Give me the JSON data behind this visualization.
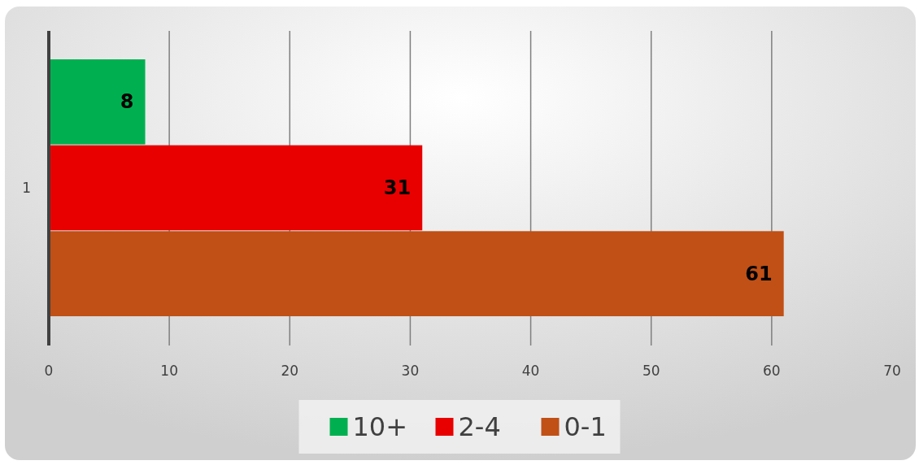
{
  "chart_data": {
    "type": "bar",
    "orientation": "horizontal",
    "categories": [
      null,
      "1",
      null
    ],
    "series": [
      {
        "name": "10+",
        "color": "#00b050",
        "values": [
          8,
          null,
          null
        ]
      },
      {
        "name": "2-4",
        "color": "#e80000",
        "values": [
          null,
          31,
          null
        ]
      },
      {
        "name": "0-1",
        "color": "#c05016",
        "values": [
          null,
          null,
          61
        ]
      }
    ],
    "xlim": [
      0,
      70
    ],
    "xticks": [
      0,
      10,
      20,
      30,
      40,
      50,
      60,
      70
    ],
    "grid": "x",
    "legend": "bottom",
    "data_labels": true
  }
}
